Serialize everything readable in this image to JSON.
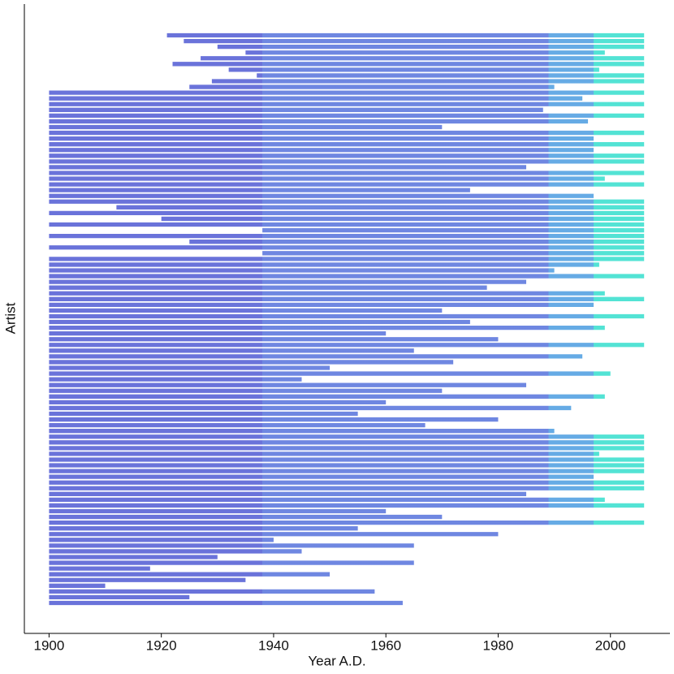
{
  "chart_data": {
    "type": "segment",
    "x_label": "Year A.D.",
    "y_label": "Artist",
    "xlim": [
      1895.6,
      2010.6
    ],
    "xticks": [
      1900,
      1920,
      1940,
      1960,
      1980,
      2000
    ],
    "eras": [
      {
        "start": 1900,
        "color": "#5a64d6"
      },
      {
        "start": 1938,
        "color": "#5f7ade"
      },
      {
        "start": 1989,
        "color": "#55a2e2"
      },
      {
        "start": 1997,
        "color": "#40e0d0"
      }
    ],
    "series": [
      {
        "starts": [
          1921,
          1924,
          1930,
          1935,
          1927,
          1922,
          1932,
          1937,
          1929,
          1925,
          1900,
          1900,
          1900,
          1900,
          1900,
          1900,
          1900,
          1900,
          1900,
          1900,
          1900,
          1900,
          1900,
          1900,
          1900,
          1900,
          1900,
          1900,
          1900,
          1900,
          1912,
          1900,
          1920,
          1900,
          1938,
          1900,
          1925,
          1900,
          1938,
          1900,
          1900,
          1900,
          1900,
          1900,
          1900,
          1900,
          1900,
          1900,
          1900,
          1900,
          1900,
          1900,
          1900,
          1900,
          1900,
          1900,
          1900,
          1900,
          1900,
          1900,
          1900,
          1900,
          1900,
          1900,
          1900,
          1900,
          1900,
          1900,
          1900,
          1900,
          1900,
          1900,
          1900,
          1900,
          1900,
          1900,
          1900,
          1900,
          1900,
          1900,
          1900,
          1900,
          1900,
          1900,
          1900,
          1900,
          1900,
          1900,
          1900,
          1900,
          1900,
          1900,
          1900,
          1900,
          1900,
          1900,
          1900,
          1900,
          1900,
          1900
        ],
        "ends": [
          2006,
          2006,
          2006,
          1999,
          2006,
          2006,
          1998,
          2006,
          2006,
          1990,
          2006,
          1995,
          2006,
          1988,
          2006,
          1996,
          1970,
          2006,
          1997,
          2006,
          1997,
          2006,
          2006,
          1985,
          2006,
          1999,
          2006,
          1975,
          1997,
          2006,
          2006,
          2006,
          2006,
          2006,
          2006,
          2006,
          2006,
          2006,
          2006,
          2006,
          1998,
          1990,
          2006,
          1985,
          1978,
          1999,
          2006,
          1997,
          1970,
          2006,
          1975,
          1999,
          1960,
          1980,
          2006,
          1965,
          1995,
          1972,
          1950,
          2000,
          1945,
          1985,
          1970,
          1999,
          1960,
          1993,
          1955,
          1980,
          1967,
          1990,
          2006,
          2006,
          2006,
          1998,
          2006,
          2006,
          2006,
          1997,
          2006,
          2006,
          1985,
          1999,
          2006,
          1960,
          1970,
          2006,
          1955,
          1980,
          1940,
          1965,
          1945,
          1930,
          1965,
          1918,
          1950,
          1935,
          1910,
          1958,
          1925,
          1963
        ]
      }
    ]
  }
}
